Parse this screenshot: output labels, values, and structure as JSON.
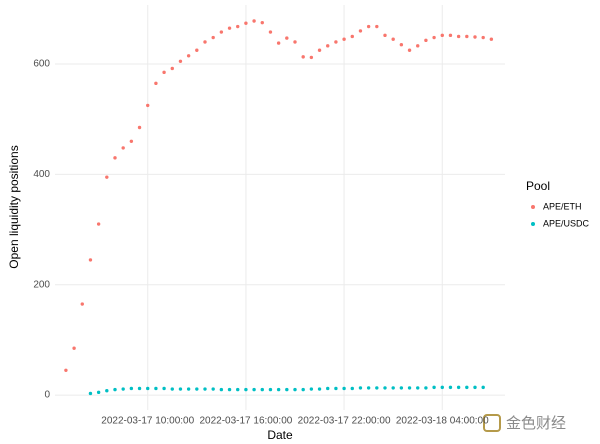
{
  "chart_data": {
    "type": "scatter",
    "x_label": "Date",
    "y_label": "Open liquidity positions",
    "legend_title": "Pool",
    "legend_position": "right",
    "grid": true,
    "x": [
      "2022-03-17 05:00:00",
      "2022-03-17 05:30:00",
      "2022-03-17 06:00:00",
      "2022-03-17 06:30:00",
      "2022-03-17 07:00:00",
      "2022-03-17 07:30:00",
      "2022-03-17 08:00:00",
      "2022-03-17 08:30:00",
      "2022-03-17 09:00:00",
      "2022-03-17 09:30:00",
      "2022-03-17 10:00:00",
      "2022-03-17 10:30:00",
      "2022-03-17 11:00:00",
      "2022-03-17 11:30:00",
      "2022-03-17 12:00:00",
      "2022-03-17 12:30:00",
      "2022-03-17 13:00:00",
      "2022-03-17 13:30:00",
      "2022-03-17 14:00:00",
      "2022-03-17 14:30:00",
      "2022-03-17 15:00:00",
      "2022-03-17 15:30:00",
      "2022-03-17 16:00:00",
      "2022-03-17 16:30:00",
      "2022-03-17 17:00:00",
      "2022-03-17 17:30:00",
      "2022-03-17 18:00:00",
      "2022-03-17 18:30:00",
      "2022-03-17 19:00:00",
      "2022-03-17 19:30:00",
      "2022-03-17 20:00:00",
      "2022-03-17 20:30:00",
      "2022-03-17 21:00:00",
      "2022-03-17 21:30:00",
      "2022-03-17 22:00:00",
      "2022-03-17 22:30:00",
      "2022-03-17 23:00:00",
      "2022-03-17 23:30:00",
      "2022-03-18 00:00:00",
      "2022-03-18 00:30:00",
      "2022-03-18 01:00:00",
      "2022-03-18 01:30:00",
      "2022-03-18 02:00:00",
      "2022-03-18 02:30:00",
      "2022-03-18 03:00:00",
      "2022-03-18 03:30:00",
      "2022-03-18 04:00:00",
      "2022-03-18 04:30:00",
      "2022-03-18 05:00:00",
      "2022-03-18 05:30:00",
      "2022-03-18 06:00:00",
      "2022-03-18 06:30:00",
      "2022-03-18 07:00:00"
    ],
    "series": [
      {
        "name": "APE/ETH",
        "color": "#F8766D",
        "values": [
          45,
          85,
          165,
          245,
          310,
          395,
          430,
          448,
          460,
          485,
          525,
          565,
          585,
          592,
          605,
          615,
          625,
          640,
          648,
          658,
          665,
          668,
          674,
          678,
          675,
          658,
          638,
          647,
          640,
          613,
          612,
          625,
          633,
          640,
          645,
          650,
          660,
          668,
          668,
          652,
          645,
          635,
          625,
          633,
          643,
          648,
          652,
          652,
          650,
          650,
          649,
          648,
          645
        ]
      },
      {
        "name": "APE/USDC",
        "color": "#00BFC4",
        "values": [
          null,
          null,
          null,
          3,
          5,
          8,
          10,
          11,
          12,
          12,
          12,
          12,
          12,
          11,
          11,
          11,
          11,
          11,
          11,
          10,
          10,
          10,
          10,
          10,
          10,
          10,
          10,
          10,
          10,
          10,
          11,
          11,
          12,
          12,
          12,
          12,
          13,
          13,
          13,
          13,
          13,
          13,
          13,
          13,
          13,
          14,
          14,
          14,
          14,
          14,
          14,
          14,
          null
        ]
      }
    ],
    "xlim": [
      "2022-03-17 04:20:00",
      "2022-03-18 07:50:00"
    ],
    "xticks": [
      "2022-03-17 10:00:00",
      "2022-03-17 16:00:00",
      "2022-03-17 22:00:00",
      "2022-03-18 04:00:00"
    ],
    "ylim": [
      -27,
      707
    ],
    "yticks": [
      0,
      200,
      400,
      600
    ]
  },
  "watermark": "金色财经"
}
